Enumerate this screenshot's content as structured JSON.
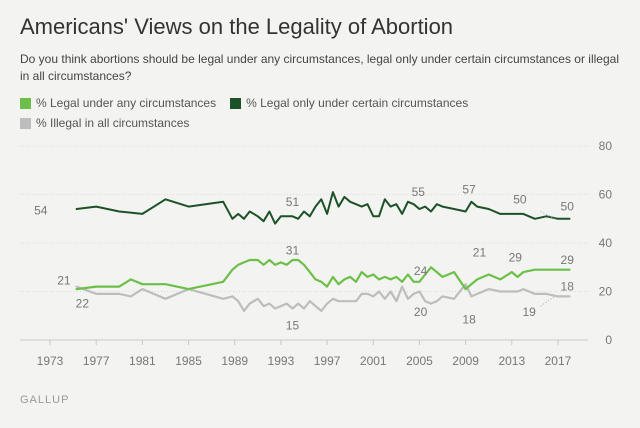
{
  "source": "GALLUP",
  "chart_data": {
    "type": "line",
    "title": "Americans' Views on the Legality of Abortion",
    "subtitle": "Do you think abortions should be legal under any circumstances, legal only under certain circumstances or illegal in all circumstances?",
    "xlim": [
      1970.4,
      2019.6
    ],
    "ylim": [
      0,
      80
    ],
    "x_ticks": [
      "1973",
      "1977",
      "1981",
      "1985",
      "1989",
      "1993",
      "1997",
      "2001",
      "2005",
      "2009",
      "2013",
      "2017"
    ],
    "y_ticks": [
      "0",
      "20",
      "40",
      "60",
      "80"
    ],
    "series": [
      {
        "name": "% Legal under any circumstances",
        "color": "#6cc04a",
        "x": [
          1975.3,
          1977,
          1979,
          1980,
          1981,
          1983,
          1985,
          1988,
          1988.8,
          1989.3,
          1989.8,
          1990.3,
          1991,
          1991.5,
          1992,
          1992.5,
          1993,
          1993.5,
          1994,
          1994.5,
          1995,
          1995.5,
          1996,
          1996.5,
          1997,
          1997.5,
          1998,
          1998.5,
          1999,
          1999.5,
          2000,
          2000.5,
          2001,
          2001.5,
          2002,
          2002.5,
          2003,
          2003.5,
          2004,
          2004.5,
          2005,
          2005.5,
          2006,
          2006.5,
          2007,
          2008,
          2009,
          2009.5,
          2010,
          2011,
          2012,
          2013,
          2013.5,
          2014,
          2015,
          2016,
          2017,
          2018
        ],
        "values": [
          21,
          22,
          22,
          25,
          23,
          23,
          21,
          24,
          29,
          31,
          32,
          33,
          33,
          31,
          33,
          31,
          32,
          31,
          33,
          33,
          31,
          28,
          25,
          24,
          22,
          26,
          23,
          25,
          26,
          24,
          28,
          26,
          27,
          25,
          26,
          25,
          26,
          24,
          27,
          24,
          24,
          27,
          30,
          28,
          26,
          28,
          21,
          23,
          25,
          27,
          25,
          28,
          26,
          28,
          29,
          29,
          29,
          29
        ]
      },
      {
        "name": "% Legal only under certain circumstances",
        "color": "#1d5127",
        "x": [
          1975.3,
          1977,
          1979,
          1981,
          1983,
          1985,
          1988,
          1988.8,
          1989.3,
          1989.8,
          1990.3,
          1991,
          1991.5,
          1992,
          1992.5,
          1993,
          1993.5,
          1994,
          1994.5,
          1995,
          1995.5,
          1996,
          1996.5,
          1997,
          1997.5,
          1998,
          1998.5,
          1999,
          1999.5,
          2000,
          2000.5,
          2001,
          2001.5,
          2002,
          2002.5,
          2003,
          2003.5,
          2004,
          2004.5,
          2005,
          2005.5,
          2006,
          2006.5,
          2007,
          2008,
          2009,
          2009.5,
          2010,
          2011,
          2012,
          2013,
          2013.5,
          2014,
          2015,
          2016,
          2017,
          2018
        ],
        "values": [
          54,
          55,
          53,
          52,
          58,
          55,
          57,
          50,
          52,
          50,
          53,
          51,
          49,
          53,
          48,
          51,
          51,
          51,
          50,
          53,
          51,
          55,
          58,
          52,
          61,
          55,
          59,
          57,
          56,
          55,
          56,
          51,
          51,
          58,
          55,
          56,
          52,
          57,
          56,
          54,
          55,
          53,
          56,
          55,
          54,
          53,
          57,
          55,
          54,
          52,
          52,
          52,
          52,
          50,
          51,
          50,
          50
        ]
      },
      {
        "name": "% Illegal in all circumstances",
        "color": "#bdbdbd",
        "x": [
          1975.3,
          1977,
          1979,
          1980,
          1981,
          1983,
          1985,
          1988,
          1988.8,
          1989.3,
          1989.8,
          1990.3,
          1991,
          1991.5,
          1992,
          1992.5,
          1993,
          1993.5,
          1994,
          1994.5,
          1995,
          1995.5,
          1996,
          1996.5,
          1997,
          1997.5,
          1998,
          1998.5,
          1999,
          1999.5,
          2000,
          2000.5,
          2001,
          2001.5,
          2002,
          2002.5,
          2003,
          2003.5,
          2004,
          2004.5,
          2005,
          2005.5,
          2006,
          2006.5,
          2007,
          2008,
          2009,
          2009.5,
          2010,
          2011,
          2012,
          2013,
          2013.5,
          2014,
          2015,
          2016,
          2017,
          2018
        ],
        "values": [
          22,
          19,
          19,
          18,
          21,
          17,
          21,
          17,
          18,
          16,
          12,
          15,
          17,
          14,
          15,
          13,
          14,
          15,
          13,
          15,
          13,
          16,
          14,
          12,
          15,
          17,
          16,
          16,
          16,
          16,
          19,
          19,
          18,
          20,
          17,
          20,
          16,
          22,
          17,
          19,
          20,
          16,
          15,
          16,
          18,
          17,
          23,
          18,
          19,
          21,
          20,
          20,
          20,
          21,
          19,
          19,
          18,
          18
        ]
      }
    ],
    "annotations": [
      {
        "text": "54",
        "x": 1972.2,
        "y": 53.5
      },
      {
        "text": "51",
        "x": 1994,
        "y": 57
      },
      {
        "text": "55",
        "x": 2004.9,
        "y": 61
      },
      {
        "text": "57",
        "x": 2009.3,
        "y": 62
      },
      {
        "text": "50",
        "x": 2013.7,
        "y": 58
      },
      {
        "text": "50",
        "x": 2017.8,
        "y": 55
      },
      {
        "text": "21",
        "x": 1974.2,
        "y": 24.5
      },
      {
        "text": "22",
        "x": 1975.8,
        "y": 15
      },
      {
        "text": "31",
        "x": 1994,
        "y": 37
      },
      {
        "text": "15",
        "x": 1994,
        "y": 6
      },
      {
        "text": "24",
        "x": 2005.1,
        "y": 28.5
      },
      {
        "text": "20",
        "x": 2005.1,
        "y": 11.5
      },
      {
        "text": "21",
        "x": 2010.2,
        "y": 36
      },
      {
        "text": "18",
        "x": 2009.3,
        "y": 8.5
      },
      {
        "text": "29",
        "x": 2013.3,
        "y": 34
      },
      {
        "text": "29",
        "x": 2017.8,
        "y": 33
      },
      {
        "text": "19",
        "x": 2014.5,
        "y": 11.5
      },
      {
        "text": "18",
        "x": 2017.8,
        "y": 22
      }
    ],
    "label_pointers": [
      {
        "from": [
          2015.5,
          53
        ],
        "to": [
          2016.7,
          50
        ]
      },
      {
        "from": [
          2015.5,
          14
        ],
        "to": [
          2016.7,
          18
        ]
      }
    ]
  }
}
